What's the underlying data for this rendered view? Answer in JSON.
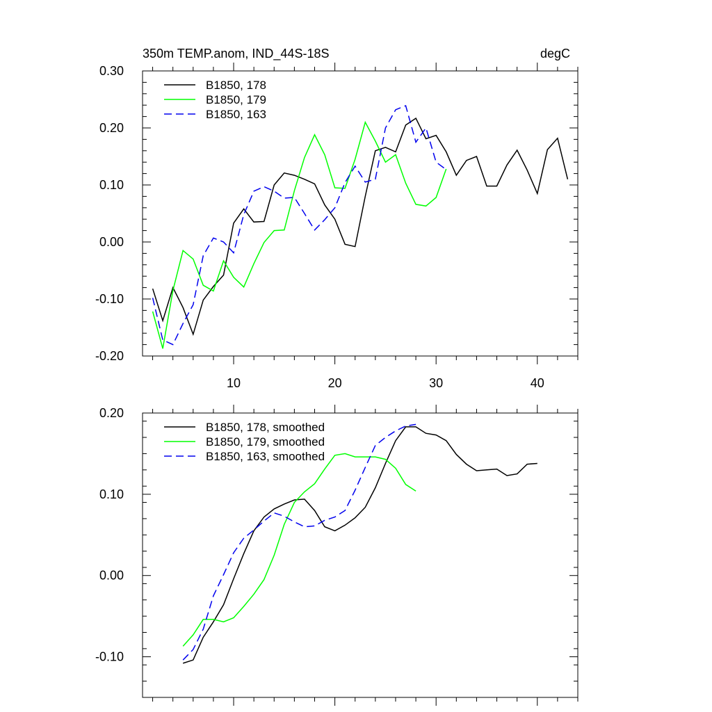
{
  "chart_data": [
    {
      "type": "line",
      "title_left": "350m TEMP.anom, IND_44S-18S",
      "title_right": "degC",
      "xlabel": "",
      "ylabel": "",
      "xlim": [
        1,
        44
      ],
      "ylim": [
        -0.2,
        0.3
      ],
      "x_ticks": [
        10,
        20,
        30,
        40
      ],
      "x_tick_labels": [
        "10",
        "20",
        "30",
        "40"
      ],
      "y_ticks": [
        -0.2,
        -0.1,
        0.0,
        0.1,
        0.2,
        0.3
      ],
      "y_tick_labels": [
        "-0.20",
        "-0.10",
        "0.00",
        "0.10",
        "0.20",
        "0.30"
      ],
      "legend_position": "top-left",
      "series": [
        {
          "name": "B1850, 178",
          "color": "#000000",
          "dash": "solid",
          "x": [
            2,
            3,
            4,
            5,
            6,
            7,
            8,
            9,
            10,
            11,
            12,
            13,
            14,
            15,
            16,
            17,
            18,
            19,
            20,
            21,
            22,
            23,
            24,
            25,
            26,
            27,
            28,
            29,
            30,
            31,
            32,
            33,
            34,
            35,
            36,
            37,
            38,
            39,
            40,
            41,
            42,
            43
          ],
          "values": [
            -0.082,
            -0.138,
            -0.08,
            -0.115,
            -0.162,
            -0.102,
            -0.078,
            -0.058,
            0.033,
            0.058,
            0.035,
            0.036,
            0.1,
            0.121,
            0.117,
            0.11,
            0.102,
            0.065,
            0.04,
            -0.004,
            -0.008,
            0.08,
            0.16,
            0.166,
            0.158,
            0.205,
            0.217,
            0.181,
            0.187,
            0.158,
            0.117,
            0.143,
            0.15,
            0.098,
            0.098,
            0.135,
            0.161,
            0.126,
            0.085,
            0.162,
            0.182,
            0.11
          ]
        },
        {
          "name": "B1850, 179",
          "color": "#00ff00",
          "dash": "solid",
          "x": [
            2,
            3,
            4,
            5,
            6,
            7,
            8,
            9,
            10,
            11,
            12,
            13,
            14,
            15,
            16,
            17,
            18,
            19,
            20,
            21,
            22,
            23,
            24,
            25,
            26,
            27,
            28,
            29,
            30,
            31
          ],
          "values": [
            -0.122,
            -0.187,
            -0.085,
            -0.015,
            -0.03,
            -0.076,
            -0.086,
            -0.033,
            -0.062,
            -0.079,
            -0.038,
            -0.001,
            0.02,
            0.021,
            0.09,
            0.148,
            0.188,
            0.153,
            0.095,
            0.094,
            0.145,
            0.21,
            0.177,
            0.14,
            0.153,
            0.103,
            0.066,
            0.063,
            0.078,
            0.128
          ]
        },
        {
          "name": "B1850, 163",
          "color": "#0000ee",
          "dash": "dashed",
          "x": [
            2,
            3,
            4,
            5,
            6,
            7,
            8,
            9,
            10,
            11,
            12,
            13,
            14,
            15,
            16,
            17,
            18,
            19,
            20,
            21,
            22,
            23,
            24,
            25,
            26,
            27,
            28,
            29,
            30,
            31
          ],
          "values": [
            -0.098,
            -0.172,
            -0.18,
            -0.143,
            -0.11,
            -0.024,
            0.007,
            0.0,
            -0.019,
            0.048,
            0.089,
            0.097,
            0.089,
            0.077,
            0.078,
            0.05,
            0.021,
            0.039,
            0.06,
            0.104,
            0.133,
            0.105,
            0.11,
            0.2,
            0.232,
            0.239,
            0.175,
            0.2,
            0.14,
            0.127
          ]
        }
      ]
    },
    {
      "type": "line",
      "xlabel": "",
      "ylabel": "",
      "xlim": [
        1,
        44
      ],
      "ylim": [
        -0.15,
        0.2
      ],
      "y_ticks": [
        -0.1,
        0.0,
        0.1,
        0.2
      ],
      "y_tick_labels": [
        "-0.10",
        "0.00",
        "0.10",
        "0.20"
      ],
      "legend_position": "top-left",
      "series": [
        {
          "name": "B1850, 178, smoothed",
          "color": "#000000",
          "dash": "solid",
          "x": [
            5,
            6,
            7,
            8,
            9,
            10,
            11,
            12,
            13,
            14,
            15,
            16,
            17,
            18,
            19,
            20,
            21,
            22,
            23,
            24,
            25,
            26,
            27,
            28,
            29,
            30,
            31,
            32,
            33,
            34,
            35,
            36,
            37,
            38,
            39,
            40
          ],
          "values": [
            -0.108,
            -0.104,
            -0.076,
            -0.057,
            -0.036,
            -0.004,
            0.027,
            0.055,
            0.072,
            0.082,
            0.088,
            0.093,
            0.094,
            0.08,
            0.06,
            0.055,
            0.062,
            0.071,
            0.084,
            0.108,
            0.138,
            0.166,
            0.183,
            0.183,
            0.175,
            0.173,
            0.166,
            0.149,
            0.137,
            0.129,
            0.13,
            0.131,
            0.123,
            0.125,
            0.137,
            0.138
          ]
        },
        {
          "name": "B1850, 179, smoothed",
          "color": "#00ff00",
          "dash": "solid",
          "x": [
            5,
            6,
            7,
            8,
            9,
            10,
            11,
            12,
            13,
            14,
            15,
            16,
            17,
            18,
            19,
            20,
            21,
            22,
            23,
            24,
            25,
            26,
            27,
            28
          ],
          "values": [
            -0.087,
            -0.073,
            -0.054,
            -0.054,
            -0.057,
            -0.052,
            -0.038,
            -0.023,
            -0.005,
            0.025,
            0.063,
            0.09,
            0.103,
            0.113,
            0.131,
            0.148,
            0.15,
            0.146,
            0.146,
            0.146,
            0.143,
            0.132,
            0.112,
            0.104
          ]
        },
        {
          "name": "B1850, 163, smoothed",
          "color": "#0000ee",
          "dash": "dashed",
          "x": [
            5,
            6,
            7,
            8,
            9,
            10,
            11,
            12,
            13,
            14,
            15,
            16,
            17,
            18,
            19,
            20,
            21,
            22,
            23,
            24,
            25,
            26,
            27,
            28
          ],
          "values": [
            -0.104,
            -0.091,
            -0.066,
            -0.025,
            0.001,
            0.028,
            0.046,
            0.056,
            0.067,
            0.077,
            0.073,
            0.066,
            0.06,
            0.061,
            0.068,
            0.072,
            0.08,
            0.105,
            0.133,
            0.16,
            0.17,
            0.178,
            0.184,
            0.186
          ]
        }
      ]
    }
  ]
}
